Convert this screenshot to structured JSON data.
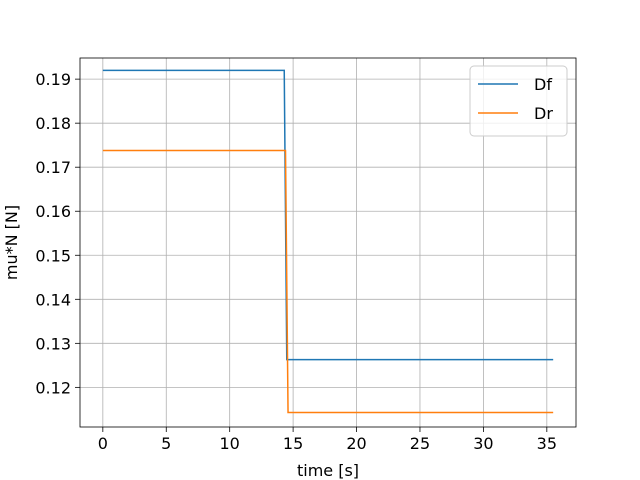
{
  "chart_data": {
    "type": "line",
    "title": "",
    "xlabel": "time [s]",
    "ylabel": "mu*N [N]",
    "xlim": [
      -1.8,
      37.3
    ],
    "ylim": [
      0.111,
      0.1948
    ],
    "xticks": [
      0,
      5,
      10,
      15,
      20,
      25,
      30,
      35
    ],
    "xtick_labels": [
      "0",
      "5",
      "10",
      "15",
      "20",
      "25",
      "30",
      "35"
    ],
    "yticks": [
      0.12,
      0.13,
      0.14,
      0.15,
      0.16,
      0.17,
      0.18,
      0.19
    ],
    "ytick_labels": [
      "0.12",
      "0.13",
      "0.14",
      "0.15",
      "0.16",
      "0.17",
      "0.18",
      "0.19"
    ],
    "grid": true,
    "legend_position": "top-right",
    "series": [
      {
        "name": "Df",
        "color": "#1f77b4",
        "x": [
          0,
          14.3,
          14.5,
          35.5
        ],
        "y": [
          0.192,
          0.192,
          0.1263,
          0.1263
        ]
      },
      {
        "name": "Dr",
        "color": "#ff7f0e",
        "x": [
          0,
          14.4,
          14.6,
          35.5
        ],
        "y": [
          0.1738,
          0.1738,
          0.1143,
          0.1143
        ]
      }
    ]
  }
}
